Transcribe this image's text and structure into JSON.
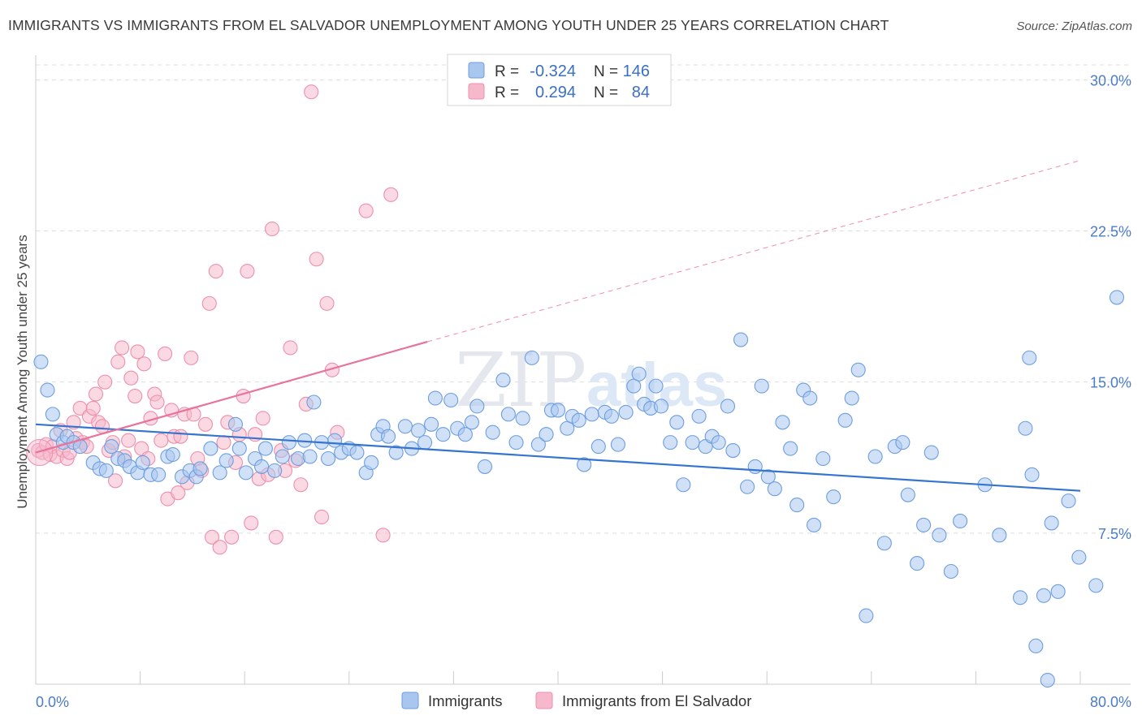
{
  "title": "IMMIGRANTS VS IMMIGRANTS FROM EL SALVADOR UNEMPLOYMENT AMONG YOUTH UNDER 25 YEARS CORRELATION CHART",
  "source": "Source: ZipAtlas.com",
  "watermark": "ZIPatlas",
  "colors": {
    "blue_fill": "#a9c7ee",
    "blue_stroke": "#6d9ee0",
    "blue_line": "#3574cf",
    "pink_fill": "#f6b9cc",
    "pink_stroke": "#ee8fad",
    "pink_line": "#e8739b",
    "grid": "#dddddd",
    "tick_text": "#4a7cc9"
  },
  "legend": {
    "rows": [
      {
        "r_label": "R =",
        "r_value": "-0.324",
        "n_label": "N =",
        "n_value": "146"
      },
      {
        "r_label": "R =",
        "r_value": "0.294",
        "n_label": "N =",
        "n_value": "84"
      }
    ]
  },
  "chart_data": {
    "type": "scatter",
    "title": "IMMIGRANTS VS IMMIGRANTS FROM EL SALVADOR UNEMPLOYMENT AMONG YOUTH UNDER 25 YEARS CORRELATION CHART",
    "xlabel": "",
    "ylabel": "Unemployment Among Youth under 25 years",
    "xlim": [
      0,
      80
    ],
    "ylim": [
      0,
      30.9
    ],
    "x_tick_labels": [
      "0.0%",
      "80.0%"
    ],
    "y_ticks": [
      7.5,
      15.0,
      22.5,
      30.0
    ],
    "y_tick_labels": [
      "7.5%",
      "15.0%",
      "22.5%",
      "30.0%"
    ],
    "grid": true,
    "legend_position": "bottom",
    "series": [
      {
        "name": "Immigrants",
        "R": -0.324,
        "N": 146,
        "trend": {
          "x1": 0,
          "y1": 12.9,
          "x2": 80,
          "y2": 9.6
        },
        "points": [
          [
            0.4,
            16.0
          ],
          [
            0.9,
            14.6
          ],
          [
            1.3,
            13.4
          ],
          [
            1.6,
            12.4
          ],
          [
            2.1,
            12.0
          ],
          [
            2.4,
            12.3
          ],
          [
            2.9,
            12.0
          ],
          [
            3.4,
            11.8
          ],
          [
            4.4,
            11.0
          ],
          [
            4.9,
            10.7
          ],
          [
            5.4,
            10.6
          ],
          [
            5.8,
            11.8
          ],
          [
            6.3,
            11.2
          ],
          [
            6.8,
            11.1
          ],
          [
            7.2,
            10.8
          ],
          [
            7.8,
            10.5
          ],
          [
            8.2,
            11.0
          ],
          [
            8.8,
            10.4
          ],
          [
            9.4,
            10.4
          ],
          [
            10.1,
            11.3
          ],
          [
            10.5,
            11.4
          ],
          [
            11.2,
            10.3
          ],
          [
            11.8,
            10.6
          ],
          [
            12.3,
            10.3
          ],
          [
            12.6,
            10.7
          ],
          [
            13.4,
            11.7
          ],
          [
            14.1,
            10.5
          ],
          [
            14.6,
            11.1
          ],
          [
            15.3,
            12.9
          ],
          [
            15.6,
            11.7
          ],
          [
            16.1,
            10.5
          ],
          [
            16.8,
            11.2
          ],
          [
            17.3,
            10.8
          ],
          [
            17.6,
            11.7
          ],
          [
            18.3,
            10.6
          ],
          [
            18.9,
            11.3
          ],
          [
            19.4,
            12.0
          ],
          [
            20.1,
            11.2
          ],
          [
            20.6,
            12.1
          ],
          [
            21.0,
            11.3
          ],
          [
            21.3,
            14.0
          ],
          [
            21.9,
            12.0
          ],
          [
            22.4,
            11.2
          ],
          [
            22.9,
            12.1
          ],
          [
            23.4,
            11.5
          ],
          [
            24.0,
            11.7
          ],
          [
            24.6,
            11.5
          ],
          [
            25.3,
            10.5
          ],
          [
            25.7,
            11.0
          ],
          [
            26.2,
            12.4
          ],
          [
            26.6,
            12.8
          ],
          [
            27.0,
            12.3
          ],
          [
            27.6,
            11.5
          ],
          [
            28.3,
            12.8
          ],
          [
            28.8,
            11.7
          ],
          [
            29.3,
            12.6
          ],
          [
            29.8,
            12.0
          ],
          [
            30.3,
            12.9
          ],
          [
            30.6,
            14.2
          ],
          [
            31.2,
            12.4
          ],
          [
            31.8,
            14.1
          ],
          [
            32.3,
            12.7
          ],
          [
            32.9,
            12.4
          ],
          [
            33.4,
            13.0
          ],
          [
            33.8,
            13.8
          ],
          [
            34.4,
            10.8
          ],
          [
            35.0,
            12.5
          ],
          [
            35.8,
            15.1
          ],
          [
            36.2,
            13.4
          ],
          [
            36.8,
            12.0
          ],
          [
            37.3,
            13.2
          ],
          [
            38.0,
            16.2
          ],
          [
            38.5,
            11.9
          ],
          [
            39.1,
            12.4
          ],
          [
            39.5,
            13.6
          ],
          [
            40.0,
            13.6
          ],
          [
            40.7,
            12.7
          ],
          [
            41.1,
            13.3
          ],
          [
            41.6,
            13.1
          ],
          [
            42.0,
            10.9
          ],
          [
            42.6,
            13.4
          ],
          [
            43.1,
            11.8
          ],
          [
            43.6,
            13.5
          ],
          [
            44.1,
            13.3
          ],
          [
            44.6,
            11.9
          ],
          [
            45.2,
            13.5
          ],
          [
            45.8,
            14.8
          ],
          [
            46.2,
            15.4
          ],
          [
            46.6,
            13.9
          ],
          [
            47.1,
            13.7
          ],
          [
            47.5,
            14.8
          ],
          [
            47.9,
            13.8
          ],
          [
            48.6,
            12.0
          ],
          [
            49.1,
            13.0
          ],
          [
            49.6,
            9.9
          ],
          [
            50.3,
            12.0
          ],
          [
            50.8,
            13.3
          ],
          [
            51.3,
            11.8
          ],
          [
            51.8,
            12.3
          ],
          [
            52.3,
            12.0
          ],
          [
            53.0,
            13.8
          ],
          [
            53.4,
            11.6
          ],
          [
            54.0,
            17.1
          ],
          [
            54.5,
            9.8
          ],
          [
            55.1,
            10.8
          ],
          [
            55.6,
            14.8
          ],
          [
            56.1,
            10.3
          ],
          [
            56.6,
            9.7
          ],
          [
            57.2,
            13.0
          ],
          [
            57.8,
            11.7
          ],
          [
            58.3,
            8.9
          ],
          [
            58.8,
            14.6
          ],
          [
            59.3,
            14.2
          ],
          [
            59.6,
            7.9
          ],
          [
            60.3,
            11.2
          ],
          [
            61.1,
            9.3
          ],
          [
            62.0,
            13.1
          ],
          [
            62.5,
            14.2
          ],
          [
            63.0,
            15.6
          ],
          [
            63.6,
            3.4
          ],
          [
            64.3,
            11.3
          ],
          [
            65.0,
            7.0
          ],
          [
            65.8,
            11.8
          ],
          [
            66.4,
            12.0
          ],
          [
            66.8,
            9.4
          ],
          [
            67.5,
            6.0
          ],
          [
            68.0,
            7.9
          ],
          [
            68.6,
            11.5
          ],
          [
            69.2,
            7.4
          ],
          [
            70.1,
            5.6
          ],
          [
            70.8,
            8.1
          ],
          [
            72.7,
            9.9
          ],
          [
            73.8,
            7.4
          ],
          [
            75.4,
            4.3
          ],
          [
            75.8,
            12.7
          ],
          [
            76.1,
            16.2
          ],
          [
            76.3,
            10.4
          ],
          [
            76.6,
            1.9
          ],
          [
            77.2,
            4.4
          ],
          [
            77.5,
            0.2
          ],
          [
            77.8,
            8.0
          ],
          [
            78.3,
            4.6
          ],
          [
            79.1,
            9.1
          ],
          [
            79.9,
            6.3
          ],
          [
            81.2,
            4.9
          ],
          [
            82.8,
            19.2
          ]
        ]
      },
      {
        "name": "Immigrants from El Salvador",
        "R": 0.294,
        "N": 84,
        "trend": {
          "x1": 0,
          "y1": 11.5,
          "x2": 30,
          "y2": 17.0,
          "dash_x2": 80,
          "dash_y2": 26.0
        },
        "points": [
          [
            0.2,
            11.6
          ],
          [
            0.5,
            11.5
          ],
          [
            0.8,
            11.9
          ],
          [
            1.1,
            11.4
          ],
          [
            1.3,
            11.8
          ],
          [
            1.6,
            11.3
          ],
          [
            1.9,
            12.6
          ],
          [
            2.1,
            11.6
          ],
          [
            2.4,
            11.2
          ],
          [
            2.6,
            11.5
          ],
          [
            2.9,
            13.0
          ],
          [
            3.1,
            12.2
          ],
          [
            3.4,
            13.7
          ],
          [
            3.6,
            12.0
          ],
          [
            3.9,
            11.8
          ],
          [
            4.1,
            13.3
          ],
          [
            4.4,
            13.7
          ],
          [
            4.6,
            14.4
          ],
          [
            4.8,
            13.0
          ],
          [
            5.1,
            12.8
          ],
          [
            5.3,
            15.0
          ],
          [
            5.6,
            11.6
          ],
          [
            5.9,
            12.0
          ],
          [
            6.1,
            10.1
          ],
          [
            6.3,
            16.0
          ],
          [
            6.6,
            16.7
          ],
          [
            6.8,
            11.3
          ],
          [
            7.1,
            12.1
          ],
          [
            7.3,
            15.2
          ],
          [
            7.6,
            14.3
          ],
          [
            7.8,
            16.5
          ],
          [
            8.1,
            11.7
          ],
          [
            8.3,
            15.9
          ],
          [
            8.6,
            11.2
          ],
          [
            8.8,
            13.2
          ],
          [
            9.1,
            14.4
          ],
          [
            9.3,
            14.0
          ],
          [
            9.6,
            12.1
          ],
          [
            9.9,
            16.4
          ],
          [
            10.1,
            9.2
          ],
          [
            10.4,
            13.6
          ],
          [
            10.6,
            12.3
          ],
          [
            10.9,
            9.5
          ],
          [
            11.1,
            12.3
          ],
          [
            11.4,
            13.4
          ],
          [
            11.6,
            10.0
          ],
          [
            11.9,
            16.2
          ],
          [
            12.1,
            13.4
          ],
          [
            12.4,
            11.2
          ],
          [
            12.7,
            10.6
          ],
          [
            13.0,
            12.9
          ],
          [
            13.3,
            18.9
          ],
          [
            13.5,
            7.3
          ],
          [
            13.8,
            20.5
          ],
          [
            14.1,
            6.8
          ],
          [
            14.4,
            12.0
          ],
          [
            14.7,
            13.0
          ],
          [
            15.0,
            7.3
          ],
          [
            15.3,
            11.0
          ],
          [
            15.6,
            12.4
          ],
          [
            15.9,
            14.3
          ],
          [
            16.2,
            20.5
          ],
          [
            16.5,
            8.0
          ],
          [
            16.8,
            12.4
          ],
          [
            17.1,
            10.2
          ],
          [
            17.4,
            13.2
          ],
          [
            17.8,
            10.4
          ],
          [
            18.1,
            22.6
          ],
          [
            18.4,
            7.3
          ],
          [
            18.8,
            11.6
          ],
          [
            19.1,
            10.6
          ],
          [
            19.5,
            16.7
          ],
          [
            19.9,
            11.1
          ],
          [
            20.3,
            9.9
          ],
          [
            20.7,
            13.9
          ],
          [
            21.1,
            29.4
          ],
          [
            21.5,
            21.1
          ],
          [
            21.9,
            8.3
          ],
          [
            22.3,
            18.9
          ],
          [
            22.7,
            15.6
          ],
          [
            23.1,
            12.5
          ],
          [
            25.3,
            23.5
          ],
          [
            26.6,
            7.4
          ],
          [
            27.2,
            24.3
          ]
        ]
      }
    ]
  },
  "bottom_legend": {
    "items": [
      "Immigrants",
      "Immigrants from El Salvador"
    ]
  }
}
